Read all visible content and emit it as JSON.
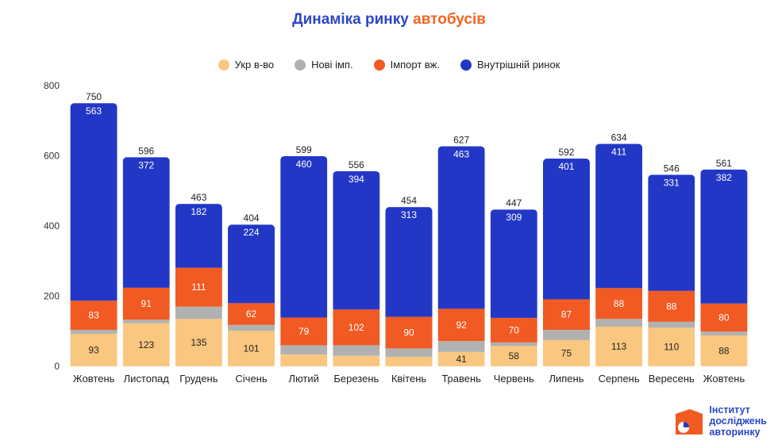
{
  "title_part1": "Динаміка ринку",
  "title_part2": "автобусів",
  "logo_lines": [
    "Інститут",
    "досліджень",
    "авторинку"
  ],
  "chart_data": {
    "type": "bar",
    "stacked": true,
    "title": "Динаміка ринку автобусів",
    "categories": [
      "Жовтень",
      "Листопад",
      "Грудень",
      "Січень",
      "Лютий",
      "Березень",
      "Квітень",
      "Травень",
      "Червень",
      "Липень",
      "Серпень",
      "Вересень",
      "Жовтень"
    ],
    "ylim": [
      0,
      800
    ],
    "yticks": [
      0,
      200,
      400,
      600,
      800
    ],
    "grid": false,
    "legend": "top-center",
    "totals": [
      750,
      596,
      463,
      404,
      599,
      556,
      454,
      627,
      447,
      592,
      634,
      546,
      561
    ],
    "series": [
      {
        "name": "Укр в-во",
        "color": "#f9c77f",
        "values": [
          93,
          123,
          135,
          101,
          34,
          30,
          27,
          41,
          58,
          75,
          113,
          110,
          88
        ],
        "labels": [
          "93",
          "123",
          "135",
          "101",
          "",
          "",
          "",
          "41",
          "58",
          "75",
          "113",
          "110",
          "88"
        ]
      },
      {
        "name": "Нові імп.",
        "color": "#b1b1b1",
        "values": [
          11,
          10,
          35,
          17,
          26,
          30,
          24,
          31,
          10,
          29,
          22,
          17,
          11
        ],
        "labels": [
          "",
          "",
          "",
          "",
          "",
          "",
          "",
          "",
          "",
          "",
          "",
          "",
          ""
        ]
      },
      {
        "name": "Імпорт вж.",
        "color": "#f15a22",
        "values": [
          83,
          91,
          111,
          62,
          79,
          102,
          90,
          92,
          70,
          87,
          88,
          88,
          80
        ],
        "labels": [
          "83",
          "91",
          "111",
          "62",
          "79",
          "102",
          "90",
          "92",
          "70",
          "87",
          "88",
          "88",
          "80"
        ]
      },
      {
        "name": "Внутрішній ринок",
        "color": "#2337c6",
        "values": [
          563,
          372,
          182,
          224,
          460,
          394,
          313,
          463,
          309,
          401,
          411,
          331,
          382
        ],
        "labels": [
          "563",
          "372",
          "182",
          "224",
          "460",
          "394",
          "313",
          "463",
          "309",
          "401",
          "411",
          "331",
          "382"
        ]
      }
    ]
  }
}
